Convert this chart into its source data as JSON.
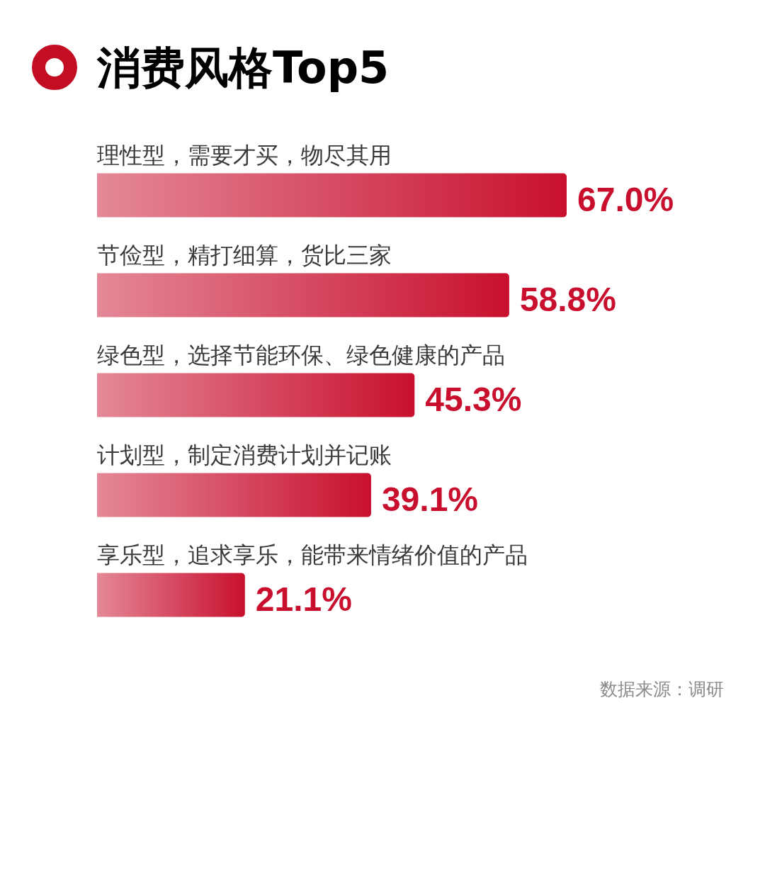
{
  "chart_data": {
    "type": "bar",
    "orientation": "horizontal",
    "title": "消费风格Top5",
    "categories": [
      "理性型，需要才买，物尽其用",
      "节俭型，精打细算，货比三家",
      "绿色型，选择节能环保、绿色健康的产品",
      "计划型，制定消费计划并记账",
      "享乐型，追求享乐，能带来情绪价值的产品"
    ],
    "values": [
      67.0,
      58.8,
      45.3,
      39.1,
      21.1
    ],
    "color": "#c8102e",
    "value_labels": [
      "67.0%",
      "58.8%",
      "45.3%",
      "39.1%",
      "21.1%"
    ],
    "annotations": [
      "数据来源：调研"
    ]
  }
}
